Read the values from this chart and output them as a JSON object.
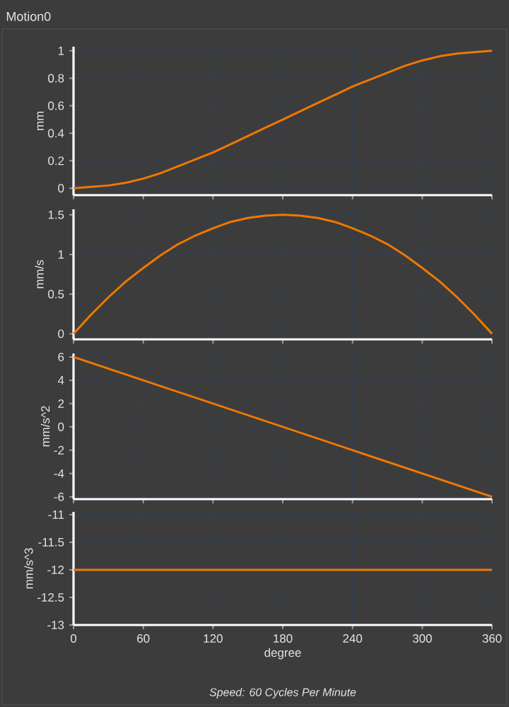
{
  "chart_data": [
    {
      "type": "line",
      "title": "Motion0",
      "ylabel": "mm",
      "x": [
        0,
        15,
        30,
        45,
        60,
        75,
        90,
        105,
        120,
        135,
        150,
        165,
        180,
        195,
        210,
        225,
        240,
        255,
        270,
        285,
        300,
        315,
        330,
        345,
        360
      ],
      "values": [
        0,
        0.01,
        0.02,
        0.04,
        0.07,
        0.11,
        0.16,
        0.21,
        0.26,
        0.32,
        0.38,
        0.44,
        0.5,
        0.56,
        0.62,
        0.68,
        0.74,
        0.79,
        0.84,
        0.89,
        0.93,
        0.96,
        0.98,
        0.99,
        1
      ],
      "color": "#f07800",
      "xlim": [
        0,
        360
      ],
      "ylim": [
        -0.05,
        1.03
      ],
      "xticks": [
        0,
        60,
        120,
        180,
        240,
        300,
        360
      ],
      "yticks": [
        0,
        0.2,
        0.4,
        0.6,
        0.8,
        1
      ],
      "grid": true,
      "tick_labels": "y"
    },
    {
      "type": "line",
      "ylabel": "mm/s",
      "x": [
        0,
        15,
        30,
        45,
        60,
        75,
        90,
        105,
        120,
        135,
        150,
        165,
        180,
        195,
        210,
        225,
        240,
        255,
        270,
        285,
        300,
        315,
        330,
        345,
        360
      ],
      "values": [
        0,
        0.24,
        0.46,
        0.66,
        0.83,
        0.99,
        1.13,
        1.24,
        1.33,
        1.41,
        1.46,
        1.49,
        1.5,
        1.49,
        1.46,
        1.41,
        1.33,
        1.24,
        1.13,
        0.99,
        0.83,
        0.66,
        0.46,
        0.24,
        0
      ],
      "color": "#f07800",
      "xlim": [
        0,
        360
      ],
      "ylim": [
        -0.07,
        1.57
      ],
      "xticks": [
        0,
        60,
        120,
        180,
        240,
        300,
        360
      ],
      "yticks": [
        0,
        0.5,
        1,
        1.5
      ],
      "grid": true,
      "tick_labels": "y"
    },
    {
      "type": "line",
      "ylabel": "mm/s^2",
      "x": [
        0,
        360
      ],
      "values": [
        6,
        -6
      ],
      "color": "#f07800",
      "xlim": [
        0,
        360
      ],
      "ylim": [
        -6.2,
        6.3
      ],
      "xticks": [
        0,
        60,
        120,
        180,
        240,
        300,
        360
      ],
      "yticks": [
        -6,
        -4,
        -2,
        0,
        2,
        4,
        6
      ],
      "grid": true,
      "tick_labels": "y"
    },
    {
      "type": "line",
      "ylabel": "mm/s^3",
      "xlabel": "degree",
      "annotations": [
        "Speed: 60 Cycles Per Minute"
      ],
      "x": [
        0,
        360
      ],
      "values": [
        -12,
        -12
      ],
      "color": "#f07800",
      "xlim": [
        0,
        360
      ],
      "ylim": [
        -13,
        -10.95
      ],
      "xticks": [
        0,
        60,
        120,
        180,
        240,
        300,
        360
      ],
      "yticks": [
        -13,
        -12.5,
        -12,
        -11.5,
        -11
      ],
      "grid": true
    }
  ]
}
